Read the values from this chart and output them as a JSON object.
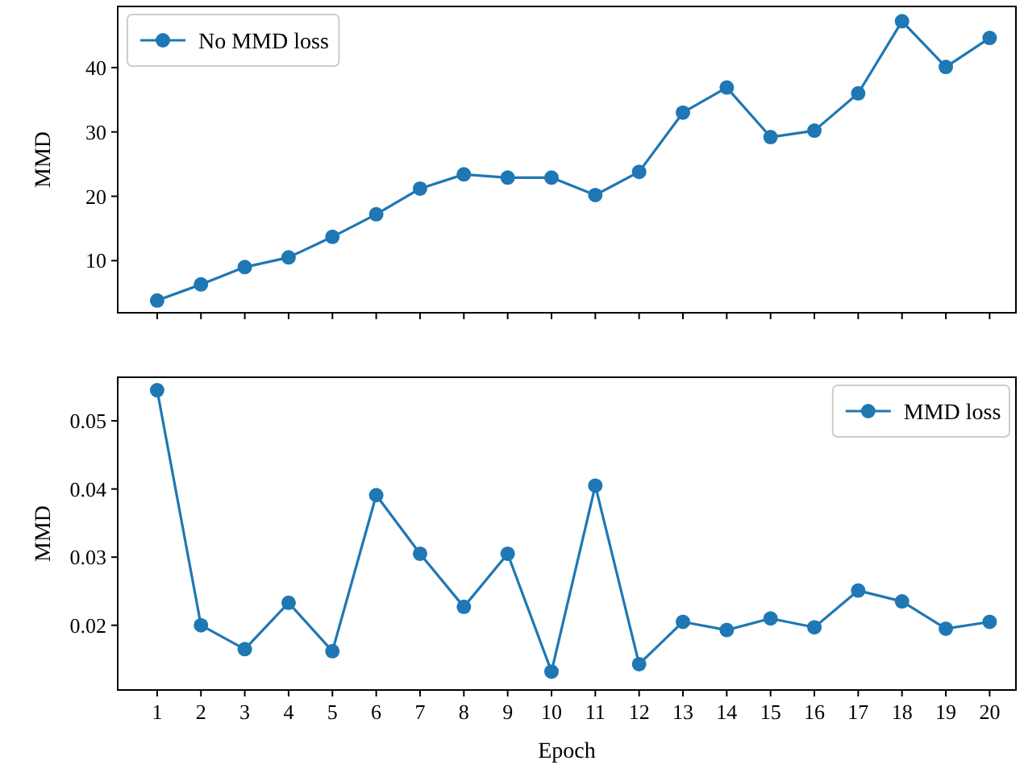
{
  "chart_data": [
    {
      "type": "line",
      "ylabel": "MMD",
      "x": [
        1,
        2,
        3,
        4,
        5,
        6,
        7,
        8,
        9,
        10,
        11,
        12,
        13,
        14,
        15,
        16,
        17,
        18,
        19,
        20
      ],
      "series": [
        {
          "name": "No MMD loss",
          "color": "#1f77b4",
          "values": [
            3.8,
            6.3,
            9.0,
            10.5,
            13.7,
            17.2,
            21.2,
            23.4,
            22.9,
            22.9,
            20.2,
            23.8,
            33.0,
            36.9,
            29.2,
            30.2,
            36.0,
            47.2,
            40.1,
            44.6
          ]
        }
      ],
      "xlim": [
        0.1,
        20.6
      ],
      "xticks": [
        1,
        2,
        3,
        4,
        5,
        6,
        7,
        8,
        9,
        10,
        11,
        12,
        13,
        14,
        15,
        16,
        17,
        18,
        19,
        20
      ],
      "ylim": [
        1.9,
        49.5
      ],
      "yticks": [
        10,
        20,
        30,
        40
      ],
      "tick_labels": "y",
      "legend": "top left",
      "marker": "circle",
      "grid": false
    },
    {
      "type": "line",
      "xlabel": "Epoch",
      "ylabel": "MMD",
      "x": [
        1,
        2,
        3,
        4,
        5,
        6,
        7,
        8,
        9,
        10,
        11,
        12,
        13,
        14,
        15,
        16,
        17,
        18,
        19,
        20
      ],
      "series": [
        {
          "name": "MMD loss",
          "color": "#1f77b4",
          "values": [
            0.0545,
            0.02,
            0.0165,
            0.0233,
            0.0162,
            0.0391,
            0.0305,
            0.0227,
            0.0305,
            0.0132,
            0.0405,
            0.0143,
            0.0205,
            0.0193,
            0.021,
            0.0197,
            0.0251,
            0.0235,
            0.0195,
            0.0205
          ]
        }
      ],
      "xlim": [
        0.1,
        20.6
      ],
      "xticks": [
        1,
        2,
        3,
        4,
        5,
        6,
        7,
        8,
        9,
        10,
        11,
        12,
        13,
        14,
        15,
        16,
        17,
        18,
        19,
        20
      ],
      "ylim": [
        0.0105,
        0.0564
      ],
      "yticks": [
        0.02,
        0.03,
        0.04,
        0.05
      ],
      "legend": "top right",
      "marker": "circle",
      "grid": false
    }
  ]
}
